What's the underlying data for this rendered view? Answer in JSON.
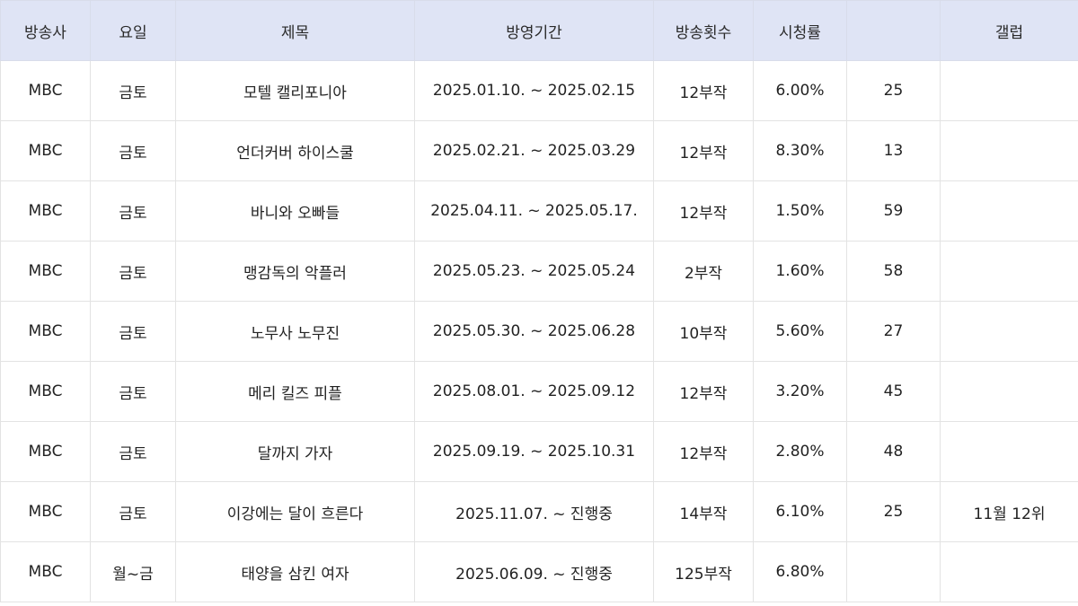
{
  "headers": [
    "방송사",
    "요일",
    "제목",
    "방영기간",
    "방송횟수",
    "시청률",
    "",
    "갤럽"
  ],
  "rows": [
    [
      "MBC",
      "금토",
      "모텔 캘리포니아",
      "2025.01.10. ~ 2025.02.15",
      "12부작",
      "6.00%",
      "25",
      ""
    ],
    [
      "MBC",
      "금토",
      "언더커버 하이스쿨",
      "2025.02.21. ~ 2025.03.29",
      "12부작",
      "8.30%",
      "13",
      ""
    ],
    [
      "MBC",
      "금토",
      "바니와 오빠들",
      "2025.04.11. ~ 2025.05.17.",
      "12부작",
      "1.50%",
      "59",
      ""
    ],
    [
      "MBC",
      "금토",
      "맹감독의 악플러",
      "2025.05.23. ~ 2025.05.24",
      "2부작",
      "1.60%",
      "58",
      ""
    ],
    [
      "MBC",
      "금토",
      "노무사 노무진",
      "2025.05.30. ~ 2025.06.28",
      "10부작",
      "5.60%",
      "27",
      ""
    ],
    [
      "MBC",
      "금토",
      "메리 킬즈 피플",
      "2025.08.01. ~ 2025.09.12",
      "12부작",
      "3.20%",
      "45",
      ""
    ],
    [
      "MBC",
      "금토",
      "달까지 가자",
      "2025.09.19. ~ 2025.10.31",
      "12부작",
      "2.80%",
      "48",
      ""
    ],
    [
      "MBC",
      "금토",
      "이강에는 달이 흐른다",
      "2025.11.07. ~ 진행중",
      "14부작",
      "6.10%",
      "25",
      "11월 12위"
    ],
    [
      "MBC",
      "월~금",
      "태양을 삼킨 여자",
      "2025.06.09. ~ 진행중",
      "125부작",
      "6.80%",
      "",
      ""
    ]
  ]
}
